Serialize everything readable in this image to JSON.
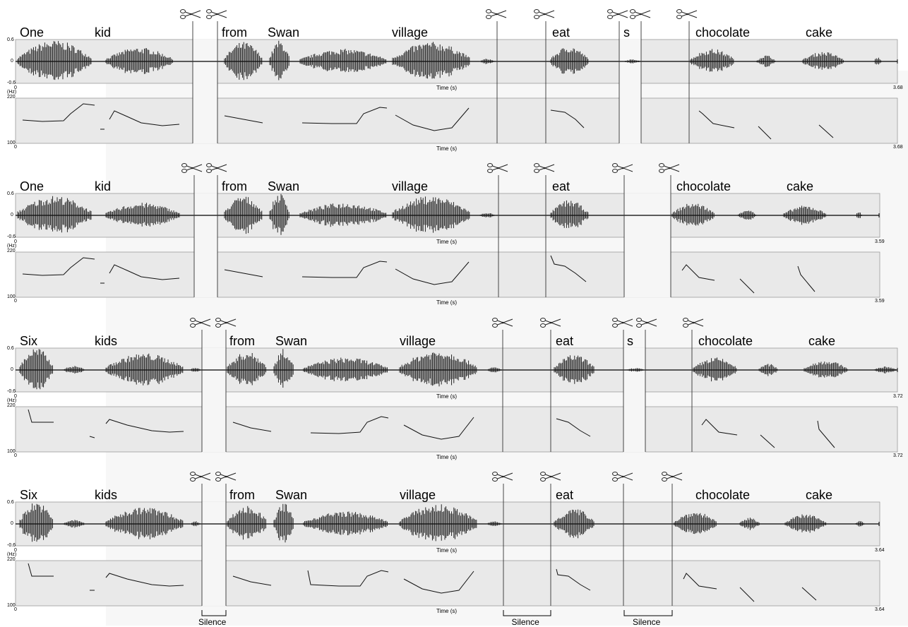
{
  "axes": {
    "wave_max": "0.6",
    "wave_zero": "0",
    "wave_min": "-0.6",
    "pitch_unit": "(Hz)",
    "pitch_max": "220",
    "pitch_min": "100",
    "time_start": "0",
    "time_label": "Time (s)"
  },
  "silence_label": "Silence",
  "rows": [
    {
      "words": [
        "One",
        "kid",
        "from",
        "Swan",
        "village",
        "eat",
        "s",
        "chocolate",
        "cake"
      ],
      "duration": "3.68"
    },
    {
      "words": [
        "One",
        "kid",
        "from",
        "Swan",
        "village",
        "eat",
        "chocolate",
        "cake"
      ],
      "duration": "3.59"
    },
    {
      "words": [
        "Six",
        "kids",
        "from",
        "Swan",
        "village",
        "eat",
        "s",
        "chocolate",
        "cake"
      ],
      "duration": "3.72"
    },
    {
      "words": [
        "Six",
        "kids",
        "from",
        "Swan",
        "village",
        "eat",
        "chocolate",
        "cake"
      ],
      "duration": "3.64"
    }
  ]
}
